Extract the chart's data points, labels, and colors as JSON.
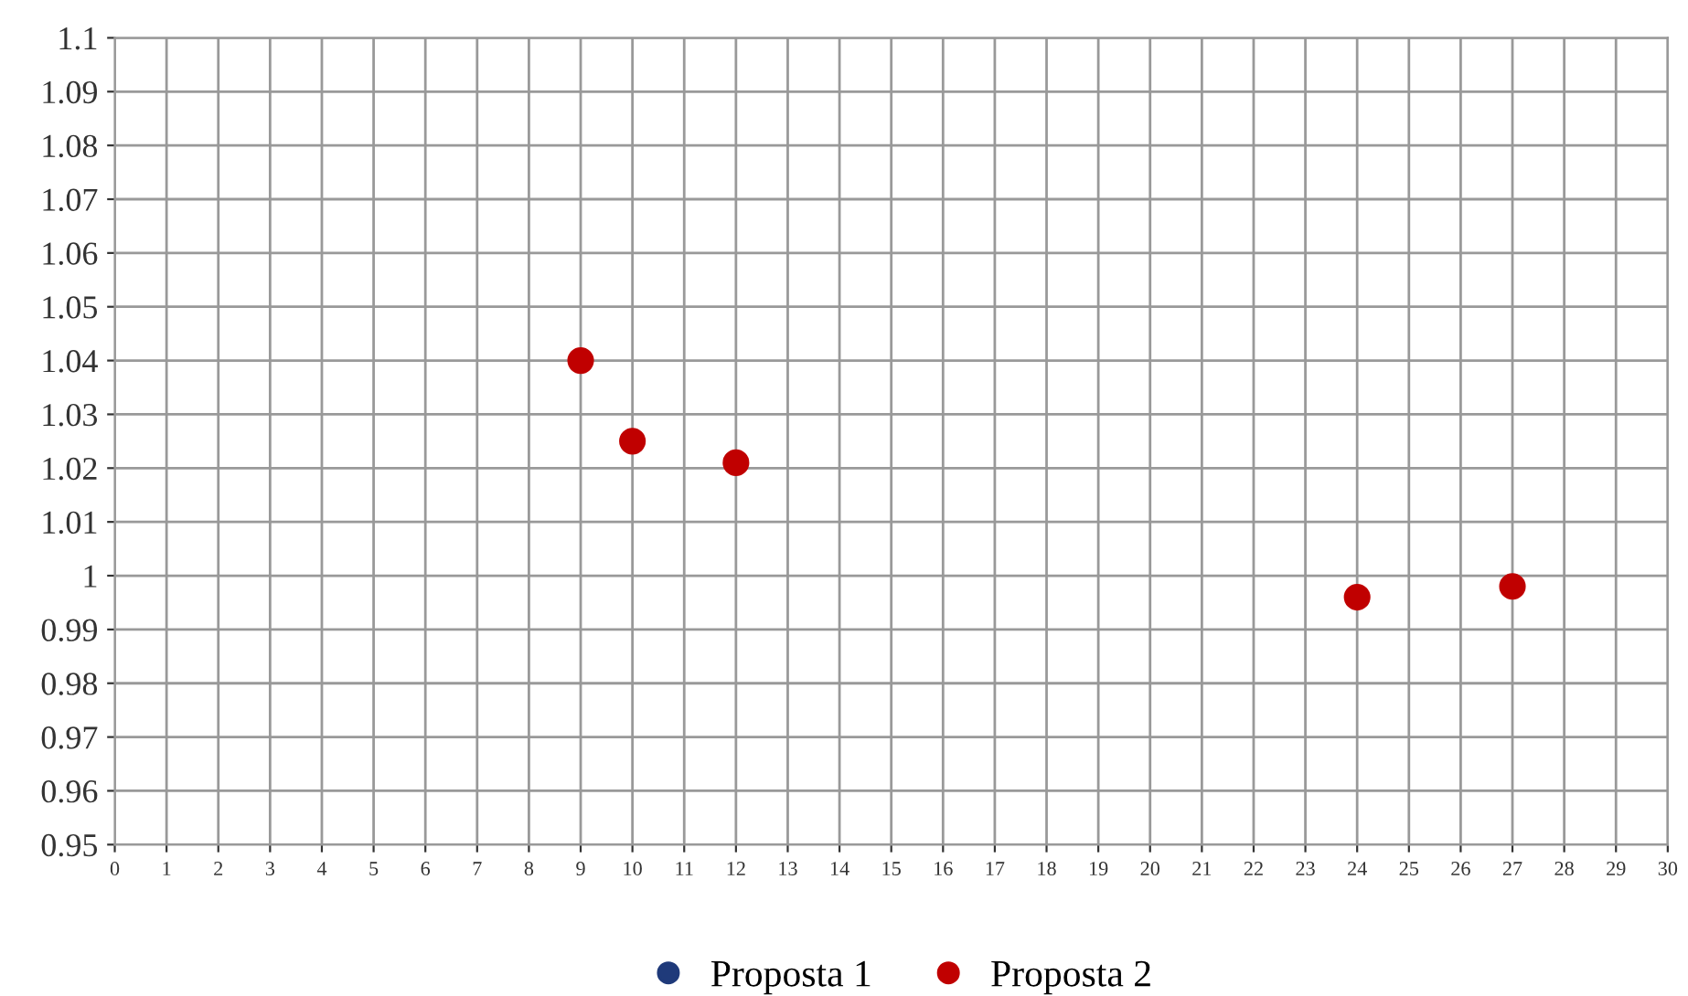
{
  "chart_data": {
    "type": "scatter",
    "series": [
      {
        "name": "Proposta 1",
        "color": "#1f3a7a"
      },
      {
        "name": "Proposta 2",
        "color": "#c00000",
        "x": [
          9,
          10,
          12,
          24,
          27
        ],
        "values": [
          1.04,
          1.025,
          1.021,
          0.996,
          0.998
        ]
      }
    ],
    "xlim": [
      0,
      30
    ],
    "xticks": [
      0,
      1,
      2,
      3,
      4,
      5,
      6,
      7,
      8,
      9,
      10,
      11,
      12,
      13,
      14,
      15,
      16,
      17,
      18,
      19,
      20,
      21,
      22,
      23,
      24,
      25,
      26,
      27,
      28,
      29,
      30
    ],
    "ylim": [
      0.95,
      1.1
    ],
    "yticks": [
      0.95,
      0.96,
      0.97,
      0.98,
      0.99,
      1,
      1.01,
      1.02,
      1.03,
      1.04,
      1.05,
      1.06,
      1.07,
      1.08,
      1.09,
      1.1
    ],
    "grid": true,
    "legend": "bottom",
    "marker": "circle"
  }
}
